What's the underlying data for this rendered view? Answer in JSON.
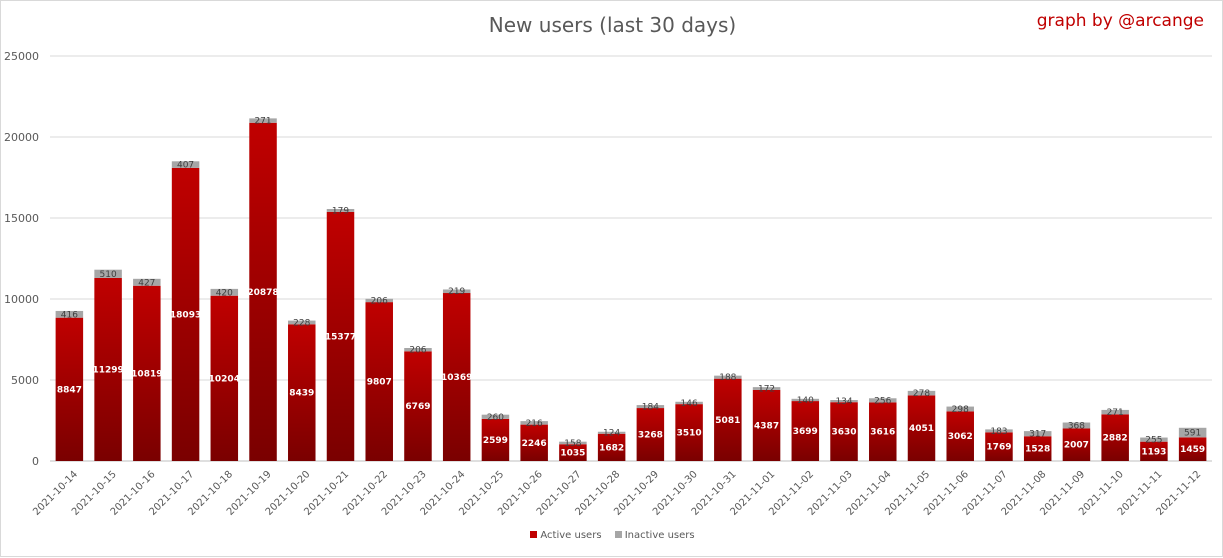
{
  "title": "New users (last 30 days)",
  "credit": "graph by @arcange",
  "colors": {
    "active": "#c00000",
    "active_dark": "#7a0000",
    "inactive": "#a6a6a6"
  },
  "chart_data": {
    "type": "bar",
    "stacked": true,
    "title": "New users (last 30 days)",
    "xlabel": "",
    "ylabel": "",
    "ylim": [
      0,
      25000
    ],
    "yticks": [
      0,
      5000,
      10000,
      15000,
      20000,
      25000
    ],
    "grid": true,
    "legend_position": "bottom",
    "categories": [
      "2021-10-14",
      "2021-10-15",
      "2021-10-16",
      "2021-10-17",
      "2021-10-18",
      "2021-10-19",
      "2021-10-20",
      "2021-10-21",
      "2021-10-22",
      "2021-10-23",
      "2021-10-24",
      "2021-10-25",
      "2021-10-26",
      "2021-10-27",
      "2021-10-28",
      "2021-10-29",
      "2021-10-30",
      "2021-10-31",
      "2021-11-01",
      "2021-11-02",
      "2021-11-03",
      "2021-11-04",
      "2021-11-05",
      "2021-11-06",
      "2021-11-07",
      "2021-11-08",
      "2021-11-09",
      "2021-11-10",
      "2021-11-11",
      "2021-11-12"
    ],
    "series": [
      {
        "name": "Active users",
        "values": [
          8847,
          11299,
          10819,
          18093,
          10204,
          20878,
          8439,
          15377,
          9807,
          6769,
          10369,
          2599,
          2246,
          1035,
          1682,
          3268,
          3510,
          5081,
          4387,
          3699,
          3630,
          3616,
          4051,
          3062,
          1769,
          1528,
          2007,
          2882,
          1193,
          1459
        ]
      },
      {
        "name": "Inactive users",
        "values": [
          416,
          510,
          427,
          407,
          420,
          271,
          228,
          179,
          206,
          206,
          219,
          260,
          216,
          158,
          124,
          184,
          146,
          188,
          172,
          140,
          134,
          256,
          278,
          298,
          183,
          317,
          368,
          271,
          255,
          591
        ]
      }
    ]
  }
}
